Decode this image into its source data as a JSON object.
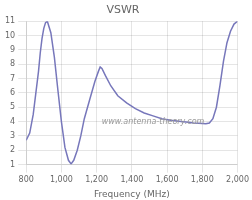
{
  "chart_data": {
    "type": "line",
    "title": "VSWR",
    "xlabel": "Frequency (MHz)",
    "x": [
      800,
      820,
      840,
      855,
      870,
      880,
      890,
      900,
      910,
      920,
      940,
      960,
      980,
      1000,
      1020,
      1040,
      1055,
      1070,
      1090,
      1110,
      1130,
      1160,
      1190,
      1210,
      1220,
      1230,
      1250,
      1280,
      1320,
      1370,
      1420,
      1470,
      1520,
      1570,
      1620,
      1680,
      1720,
      1750,
      1780,
      1800,
      1820,
      1840,
      1860,
      1880,
      1900,
      1920,
      1940,
      1960,
      1980,
      2000
    ],
    "values": [
      2.7,
      3.2,
      4.5,
      6.0,
      7.5,
      8.8,
      9.8,
      10.5,
      10.9,
      11.0,
      10.2,
      8.5,
      6.2,
      4.0,
      2.2,
      1.3,
      1.05,
      1.3,
      2.0,
      3.0,
      4.2,
      5.5,
      6.8,
      7.5,
      7.8,
      7.7,
      7.2,
      6.5,
      5.8,
      5.3,
      4.9,
      4.6,
      4.4,
      4.2,
      4.1,
      4.0,
      3.95,
      3.9,
      3.88,
      3.87,
      3.85,
      3.9,
      4.2,
      5.0,
      6.5,
      8.2,
      9.5,
      10.3,
      10.8,
      11.0
    ],
    "color": "#7777bb",
    "xlim": [
      800,
      2000
    ],
    "xticks": [
      800,
      1000,
      1200,
      1400,
      1600,
      1800,
      2000
    ],
    "ylim": [
      1,
      11
    ],
    "yticks": [
      1,
      2,
      3,
      4,
      5,
      6,
      7,
      8,
      9,
      10,
      11
    ],
    "grid": true,
    "annotations": [
      "www.antenna-theory.com"
    ]
  }
}
